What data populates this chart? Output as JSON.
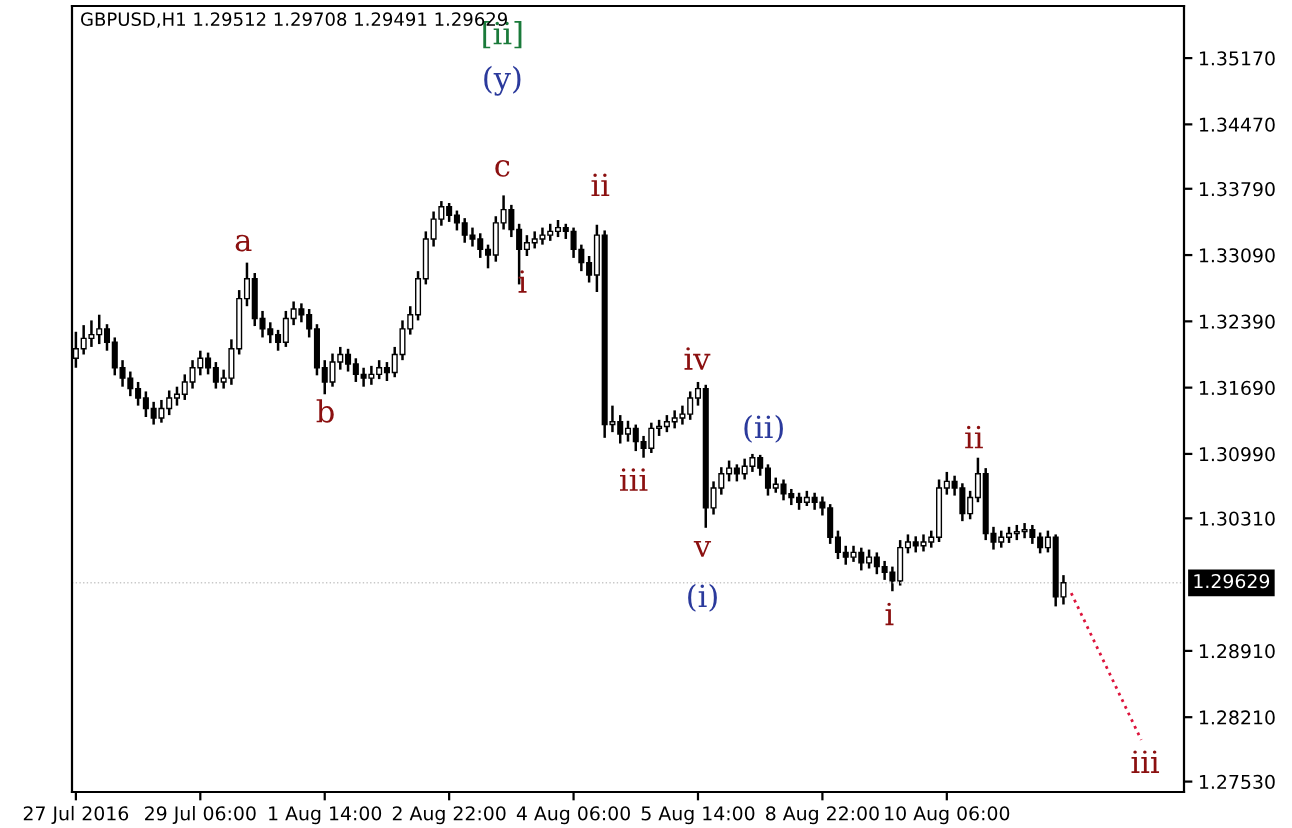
{
  "chart_data": {
    "type": "candlestick",
    "title": "GBPUSD,H1 1.29512 1.29708 1.29491 1.29629",
    "categories": [
      "27 Jul 2016",
      null,
      null,
      null,
      null,
      null,
      null,
      null,
      null,
      null,
      null,
      null,
      null,
      null,
      null,
      null,
      "29 Jul 06:00",
      null,
      null,
      null,
      null,
      null,
      null,
      null,
      null,
      null,
      null,
      null,
      null,
      null,
      null,
      null,
      "1 Aug 14:00",
      null,
      null,
      null,
      null,
      null,
      null,
      null,
      null,
      null,
      null,
      null,
      null,
      null,
      null,
      null,
      "2 Aug 22:00",
      null,
      null,
      null,
      null,
      null,
      null,
      null,
      null,
      null,
      null,
      null,
      null,
      null,
      null,
      null,
      "4 Aug 06:00",
      null,
      null,
      null,
      null,
      null,
      null,
      null,
      null,
      null,
      null,
      null,
      null,
      null,
      null,
      null,
      "5 Aug 14:00",
      null,
      null,
      null,
      null,
      null,
      null,
      null,
      null,
      null,
      null,
      null,
      null,
      null,
      null,
      null,
      "8 Aug 22:00",
      null,
      null,
      null,
      null,
      null,
      null,
      null,
      null,
      null,
      null,
      null,
      null,
      null,
      null,
      null,
      "10 Aug 06:00",
      null,
      null,
      null,
      null,
      null,
      null,
      null,
      null,
      null,
      null,
      null,
      null,
      null,
      null,
      null,
      null,
      null,
      null,
      null,
      null,
      null,
      null,
      null,
      null,
      null
    ],
    "series": [
      {
        "color": "#000000",
        "ohlc": [
          [
            1.32,
            1.3228,
            1.319,
            1.321
          ],
          [
            1.321,
            1.3235,
            1.3204,
            1.3221
          ],
          [
            1.3221,
            1.324,
            1.3212,
            1.3225
          ],
          [
            1.3225,
            1.3246,
            1.3215,
            1.3231
          ],
          [
            1.3231,
            1.3236,
            1.3208,
            1.3217
          ],
          [
            1.3217,
            1.3222,
            1.3182,
            1.319
          ],
          [
            1.319,
            1.3198,
            1.317,
            1.3179
          ],
          [
            1.3179,
            1.3186,
            1.316,
            1.3168
          ],
          [
            1.3168,
            1.3175,
            1.315,
            1.3158
          ],
          [
            1.3158,
            1.3165,
            1.3138,
            1.3147
          ],
          [
            1.3147,
            1.3154,
            1.313,
            1.3137
          ],
          [
            1.3137,
            1.3156,
            1.3132,
            1.3147
          ],
          [
            1.3147,
            1.3166,
            1.314,
            1.3158
          ],
          [
            1.3158,
            1.317,
            1.315,
            1.3162
          ],
          [
            1.3162,
            1.3183,
            1.3156,
            1.3175
          ],
          [
            1.3175,
            1.3198,
            1.3168,
            1.319
          ],
          [
            1.319,
            1.3208,
            1.3182,
            1.32
          ],
          [
            1.32,
            1.3206,
            1.3183,
            1.319
          ],
          [
            1.319,
            1.3196,
            1.3168,
            1.3175
          ],
          [
            1.3175,
            1.3188,
            1.3168,
            1.3179
          ],
          [
            1.3179,
            1.322,
            1.3172,
            1.321
          ],
          [
            1.321,
            1.3272,
            1.3204,
            1.3263
          ],
          [
            1.3263,
            1.3301,
            1.3255,
            1.3284
          ],
          [
            1.3284,
            1.329,
            1.3234,
            1.3242
          ],
          [
            1.3242,
            1.325,
            1.3222,
            1.3231
          ],
          [
            1.3231,
            1.3238,
            1.3216,
            1.3225
          ],
          [
            1.3225,
            1.323,
            1.3208,
            1.3217
          ],
          [
            1.3217,
            1.325,
            1.3212,
            1.3242
          ],
          [
            1.3242,
            1.326,
            1.3235,
            1.3252
          ],
          [
            1.3252,
            1.3258,
            1.3238,
            1.3246
          ],
          [
            1.3246,
            1.3252,
            1.3222,
            1.3231
          ],
          [
            1.3231,
            1.3236,
            1.3182,
            1.319
          ],
          [
            1.319,
            1.3198,
            1.3162,
            1.3175
          ],
          [
            1.3175,
            1.3205,
            1.317,
            1.3196
          ],
          [
            1.3196,
            1.3212,
            1.3188,
            1.3204
          ],
          [
            1.3204,
            1.321,
            1.3186,
            1.3194
          ],
          [
            1.3194,
            1.32,
            1.3175,
            1.3183
          ],
          [
            1.3183,
            1.319,
            1.317,
            1.3179
          ],
          [
            1.3179,
            1.3192,
            1.3172,
            1.3183
          ],
          [
            1.3183,
            1.3198,
            1.3178,
            1.319
          ],
          [
            1.319,
            1.3196,
            1.3176,
            1.3185
          ],
          [
            1.3185,
            1.3212,
            1.318,
            1.3204
          ],
          [
            1.3204,
            1.324,
            1.3198,
            1.3231
          ],
          [
            1.3231,
            1.3255,
            1.3225,
            1.3246
          ],
          [
            1.3246,
            1.3292,
            1.324,
            1.3284
          ],
          [
            1.3284,
            1.3334,
            1.3278,
            1.3326
          ],
          [
            1.3326,
            1.3355,
            1.3318,
            1.3347
          ],
          [
            1.3347,
            1.3366,
            1.334,
            1.336
          ],
          [
            1.336,
            1.3364,
            1.3344,
            1.3351
          ],
          [
            1.3351,
            1.3356,
            1.3335,
            1.3343
          ],
          [
            1.3343,
            1.3348,
            1.3322,
            1.333
          ],
          [
            1.333,
            1.3338,
            1.3318,
            1.3326
          ],
          [
            1.3326,
            1.3332,
            1.3306,
            1.3315
          ],
          [
            1.3315,
            1.332,
            1.3295,
            1.3309
          ],
          [
            1.3309,
            1.335,
            1.3302,
            1.3343
          ],
          [
            1.3343,
            1.3372,
            1.3336,
            1.3357
          ],
          [
            1.3357,
            1.3362,
            1.3328,
            1.3336
          ],
          [
            1.3336,
            1.3342,
            1.3278,
            1.3315
          ],
          [
            1.3315,
            1.333,
            1.3308,
            1.3322
          ],
          [
            1.3322,
            1.3334,
            1.3316,
            1.3326
          ],
          [
            1.3326,
            1.3338,
            1.332,
            1.333
          ],
          [
            1.333,
            1.3342,
            1.3324,
            1.3334
          ],
          [
            1.3334,
            1.3346,
            1.3328,
            1.3338
          ],
          [
            1.3338,
            1.3342,
            1.3326,
            1.3334
          ],
          [
            1.3334,
            1.3338,
            1.3306,
            1.3315
          ],
          [
            1.3315,
            1.332,
            1.3292,
            1.3301
          ],
          [
            1.3301,
            1.3308,
            1.328,
            1.3288
          ],
          [
            1.3288,
            1.3341,
            1.327,
            1.333
          ],
          [
            1.333,
            1.3335,
            1.3116,
            1.313
          ],
          [
            1.313,
            1.315,
            1.3122,
            1.3133
          ],
          [
            1.3133,
            1.314,
            1.311,
            1.312
          ],
          [
            1.312,
            1.3134,
            1.3112,
            1.3126
          ],
          [
            1.3126,
            1.313,
            1.3102,
            1.3112
          ],
          [
            1.3112,
            1.3118,
            1.3095,
            1.3105
          ],
          [
            1.3105,
            1.3132,
            1.31,
            1.3126
          ],
          [
            1.3126,
            1.3135,
            1.3118,
            1.3128
          ],
          [
            1.3128,
            1.314,
            1.3122,
            1.3133
          ],
          [
            1.3133,
            1.3145,
            1.3126,
            1.3137
          ],
          [
            1.3137,
            1.315,
            1.313,
            1.3141
          ],
          [
            1.3141,
            1.3165,
            1.3135,
            1.3158
          ],
          [
            1.3158,
            1.3175,
            1.315,
            1.3168
          ],
          [
            1.3168,
            1.3172,
            1.3021,
            1.3042
          ],
          [
            1.3042,
            1.307,
            1.3035,
            1.3063
          ],
          [
            1.3063,
            1.3085,
            1.3056,
            1.3078
          ],
          [
            1.3078,
            1.3092,
            1.307,
            1.3084
          ],
          [
            1.3084,
            1.3088,
            1.307,
            1.3078
          ],
          [
            1.3078,
            1.3094,
            1.3072,
            1.3086
          ],
          [
            1.3086,
            1.3099,
            1.308,
            1.3095
          ],
          [
            1.3095,
            1.3098,
            1.3076,
            1.3084
          ],
          [
            1.3084,
            1.3088,
            1.3055,
            1.3063
          ],
          [
            1.3063,
            1.3074,
            1.3058,
            1.3067
          ],
          [
            1.3067,
            1.3072,
            1.305,
            1.3057
          ],
          [
            1.3057,
            1.3062,
            1.3045,
            1.3053
          ],
          [
            1.3053,
            1.3058,
            1.304,
            1.3048
          ],
          [
            1.3048,
            1.306,
            1.3044,
            1.3053
          ],
          [
            1.3053,
            1.3058,
            1.304,
            1.3048
          ],
          [
            1.3048,
            1.3054,
            1.3034,
            1.3042
          ],
          [
            1.3042,
            1.3046,
            1.3004,
            1.3011
          ],
          [
            1.3011,
            1.3018,
            1.2988,
            1.2995
          ],
          [
            1.2995,
            1.3002,
            1.2982,
            1.299
          ],
          [
            1.299,
            1.3002,
            1.2985,
            1.2995
          ],
          [
            1.2995,
            1.3,
            1.2976,
            1.2984
          ],
          [
            1.2984,
            1.2998,
            1.2978,
            1.299
          ],
          [
            1.299,
            1.2995,
            1.2972,
            1.298
          ],
          [
            1.298,
            1.2986,
            1.2966,
            1.2974
          ],
          [
            1.2974,
            1.298,
            1.2954,
            1.2965
          ],
          [
            1.2965,
            1.3008,
            1.296,
            1.3
          ],
          [
            1.3,
            1.3014,
            1.2994,
            1.3006
          ],
          [
            1.3006,
            1.3012,
            1.2995,
            1.3002
          ],
          [
            1.3002,
            1.3014,
            1.2996,
            1.3006
          ],
          [
            1.3006,
            1.3018,
            1.3,
            1.3011
          ],
          [
            1.3011,
            1.3072,
            1.3006,
            1.3063
          ],
          [
            1.3063,
            1.308,
            1.3056,
            1.307
          ],
          [
            1.307,
            1.3076,
            1.3055,
            1.3063
          ],
          [
            1.3063,
            1.3068,
            1.3028,
            1.3036
          ],
          [
            1.3036,
            1.306,
            1.303,
            1.3053
          ],
          [
            1.3053,
            1.3095,
            1.3048,
            1.3078
          ],
          [
            1.3078,
            1.3084,
            1.3008,
            1.3015
          ],
          [
            1.3015,
            1.3022,
            1.2998,
            1.3006
          ],
          [
            1.3006,
            1.3018,
            1.3,
            1.3011
          ],
          [
            1.3011,
            1.3022,
            1.3005,
            1.3015
          ],
          [
            1.3015,
            1.3024,
            1.3008,
            1.3017
          ],
          [
            1.3017,
            1.3026,
            1.301,
            1.3019
          ],
          [
            1.3019,
            1.3024,
            1.3004,
            1.3011
          ],
          [
            1.3011,
            1.3016,
            1.2994,
            1.3
          ],
          [
            1.3,
            1.3018,
            1.2995,
            1.3011
          ],
          [
            1.3011,
            1.3014,
            1.2938,
            1.2948
          ],
          [
            1.2948,
            1.2971,
            1.294,
            1.29629
          ],
          null,
          null,
          null,
          null,
          null,
          null,
          null,
          null,
          null,
          null
        ]
      },
      {
        "type": "line",
        "color": "#dc143c",
        "line_style": "dotted",
        "values": [
          null,
          null,
          null,
          null,
          null,
          null,
          null,
          null,
          null,
          null,
          null,
          null,
          null,
          null,
          null,
          null,
          null,
          null,
          null,
          null,
          null,
          null,
          null,
          null,
          null,
          null,
          null,
          null,
          null,
          null,
          null,
          null,
          null,
          null,
          null,
          null,
          null,
          null,
          null,
          null,
          null,
          null,
          null,
          null,
          null,
          null,
          null,
          null,
          null,
          null,
          null,
          null,
          null,
          null,
          null,
          null,
          null,
          null,
          null,
          null,
          null,
          null,
          null,
          null,
          null,
          null,
          null,
          null,
          null,
          null,
          null,
          null,
          null,
          null,
          null,
          null,
          null,
          null,
          null,
          null,
          null,
          null,
          null,
          null,
          null,
          null,
          null,
          null,
          null,
          null,
          null,
          null,
          null,
          null,
          null,
          null,
          null,
          null,
          null,
          null,
          null,
          null,
          null,
          null,
          null,
          null,
          null,
          null,
          null,
          null,
          null,
          null,
          null,
          null,
          null,
          null,
          null,
          null,
          null,
          null,
          null,
          null,
          null,
          null,
          null,
          null,
          null,
          null,
          1.2952,
          null,
          null,
          null,
          null,
          null,
          null,
          null,
          null,
          1.2797
        ]
      }
    ],
    "ylim": [
      1.2742,
      1.3572
    ],
    "yticks": [
      {
        "value": 1.3517,
        "label": "1.35170"
      },
      {
        "value": 1.3447,
        "label": "1.34470"
      },
      {
        "value": 1.3379,
        "label": "1.33790"
      },
      {
        "value": 1.3309,
        "label": "1.33090"
      },
      {
        "value": 1.3239,
        "label": "1.32390"
      },
      {
        "value": 1.3169,
        "label": "1.31690"
      },
      {
        "value": 1.3099,
        "label": "1.30990"
      },
      {
        "value": 1.3031,
        "label": "1.30310"
      },
      {
        "value": 1.2891,
        "label": "1.28910"
      },
      {
        "value": 1.2821,
        "label": "1.28210"
      },
      {
        "value": 1.2753,
        "label": "1.27530"
      }
    ],
    "ref_lines": [
      {
        "axis": "y",
        "value": 1.29629,
        "label": "1.29629"
      }
    ],
    "annotations": [
      "[ii]",
      "(y)",
      "c",
      "a",
      "b",
      "i",
      "ii",
      "iii",
      "iv",
      "v",
      "(i)",
      "(ii)",
      "i",
      "ii",
      "iii"
    ],
    "grid": false,
    "legend": false
  }
}
